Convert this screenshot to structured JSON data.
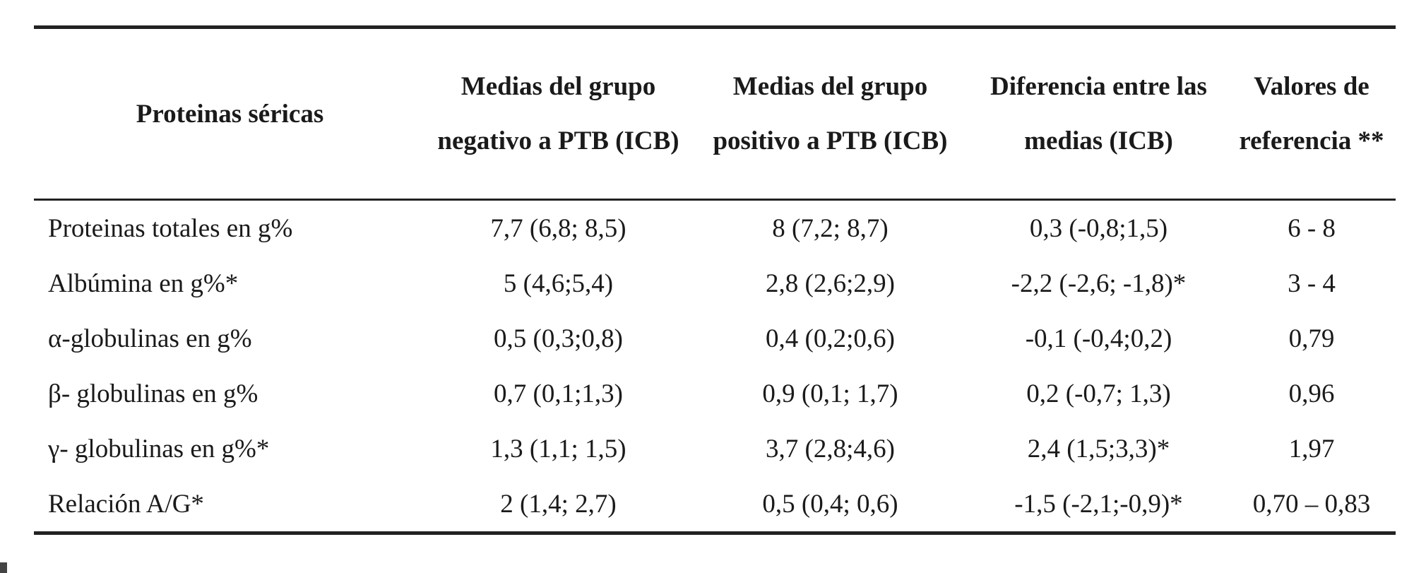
{
  "table": {
    "headers": [
      "Proteinas séricas",
      "Medias del grupo negativo a PTB (ICB)",
      "Medias del grupo positivo a PTB (ICB)",
      "Diferencia entre las medias (ICB)",
      "Valores de referencia **"
    ],
    "rows": [
      [
        "Proteinas totales en g%",
        "7,7 (6,8; 8,5)",
        "8 (7,2; 8,7)",
        "0,3 (-0,8;1,5)",
        "6 - 8"
      ],
      [
        "Albúmina en g%*",
        "5 (4,6;5,4)",
        "2,8 (2,6;2,9)",
        "-2,2 (-2,6; -1,8)*",
        "3 - 4"
      ],
      [
        "α-globulinas en g%",
        "0,5 (0,3;0,8)",
        "0,4 (0,2;0,6)",
        "-0,1 (-0,4;0,2)",
        "0,79"
      ],
      [
        "β- globulinas en g%",
        "0,7 (0,1;1,3)",
        "0,9 (0,1; 1,7)",
        "0,2 (-0,7; 1,3)",
        "0,96"
      ],
      [
        "γ- globulinas en g%*",
        "1,3 (1,1; 1,5)",
        "3,7 (2,8;4,6)",
        "2,4 (1,5;3,3)*",
        "1,97"
      ],
      [
        "Relación A/G*",
        "2 (1,4; 2,7)",
        "0,5 (0,4; 0,6)",
        "-1,5 (-2,1;-0,9)*",
        "0,70 – 0,83"
      ]
    ]
  }
}
